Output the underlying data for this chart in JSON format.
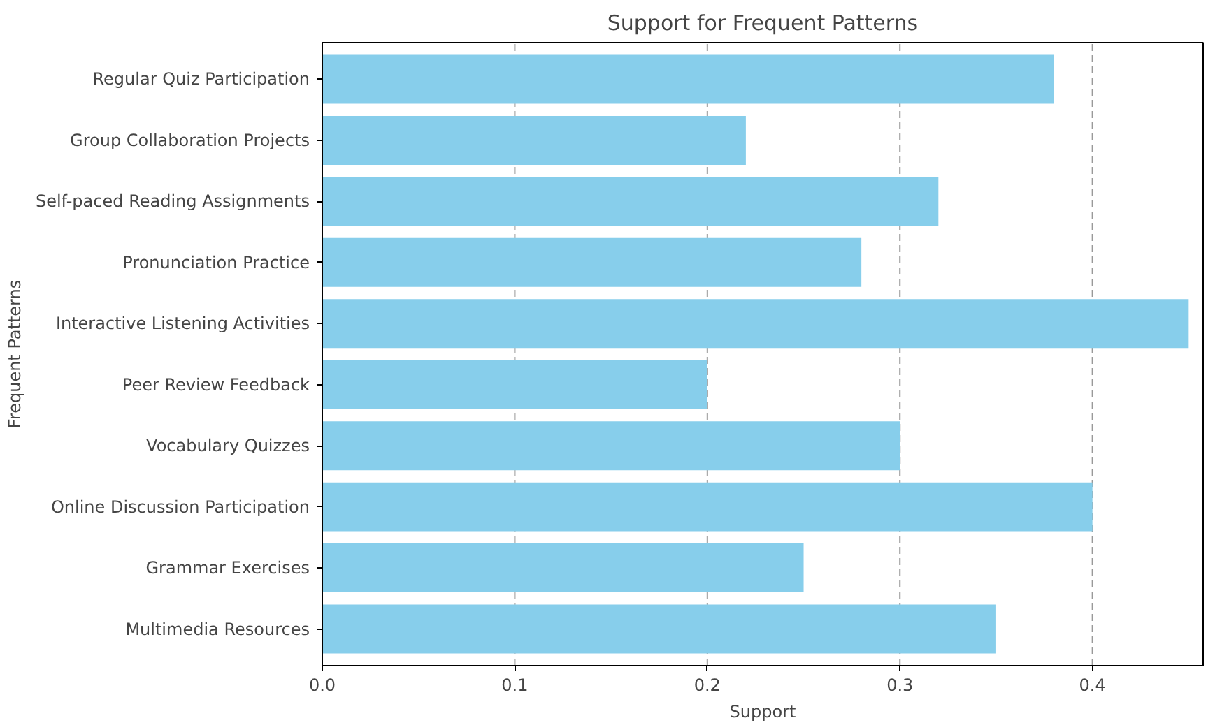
{
  "chart_data": {
    "type": "bar",
    "orientation": "horizontal",
    "title": "Support for Frequent Patterns",
    "xlabel": "Support",
    "ylabel": "Frequent Patterns",
    "categories": [
      "Regular Quiz Participation",
      "Group Collaboration Projects",
      "Self-paced Reading Assignments",
      "Pronunciation Practice",
      "Interactive Listening Activities",
      "Peer Review Feedback",
      "Vocabulary Quizzes",
      "Online Discussion Participation",
      "Grammar Exercises",
      "Multimedia Resources"
    ],
    "values": [
      0.38,
      0.22,
      0.32,
      0.28,
      0.45,
      0.2,
      0.3,
      0.4,
      0.25,
      0.35
    ],
    "color": "#87ceeb",
    "xlim": [
      0,
      0.4575
    ],
    "xticks": [
      {
        "value": 0,
        "label": "0.0"
      },
      {
        "value": 0.1,
        "label": "0.1"
      },
      {
        "value": 0.2,
        "label": "0.2"
      },
      {
        "value": 0.3,
        "label": "0.3"
      },
      {
        "value": 0.4,
        "label": "0.4"
      }
    ],
    "grid": "x"
  }
}
